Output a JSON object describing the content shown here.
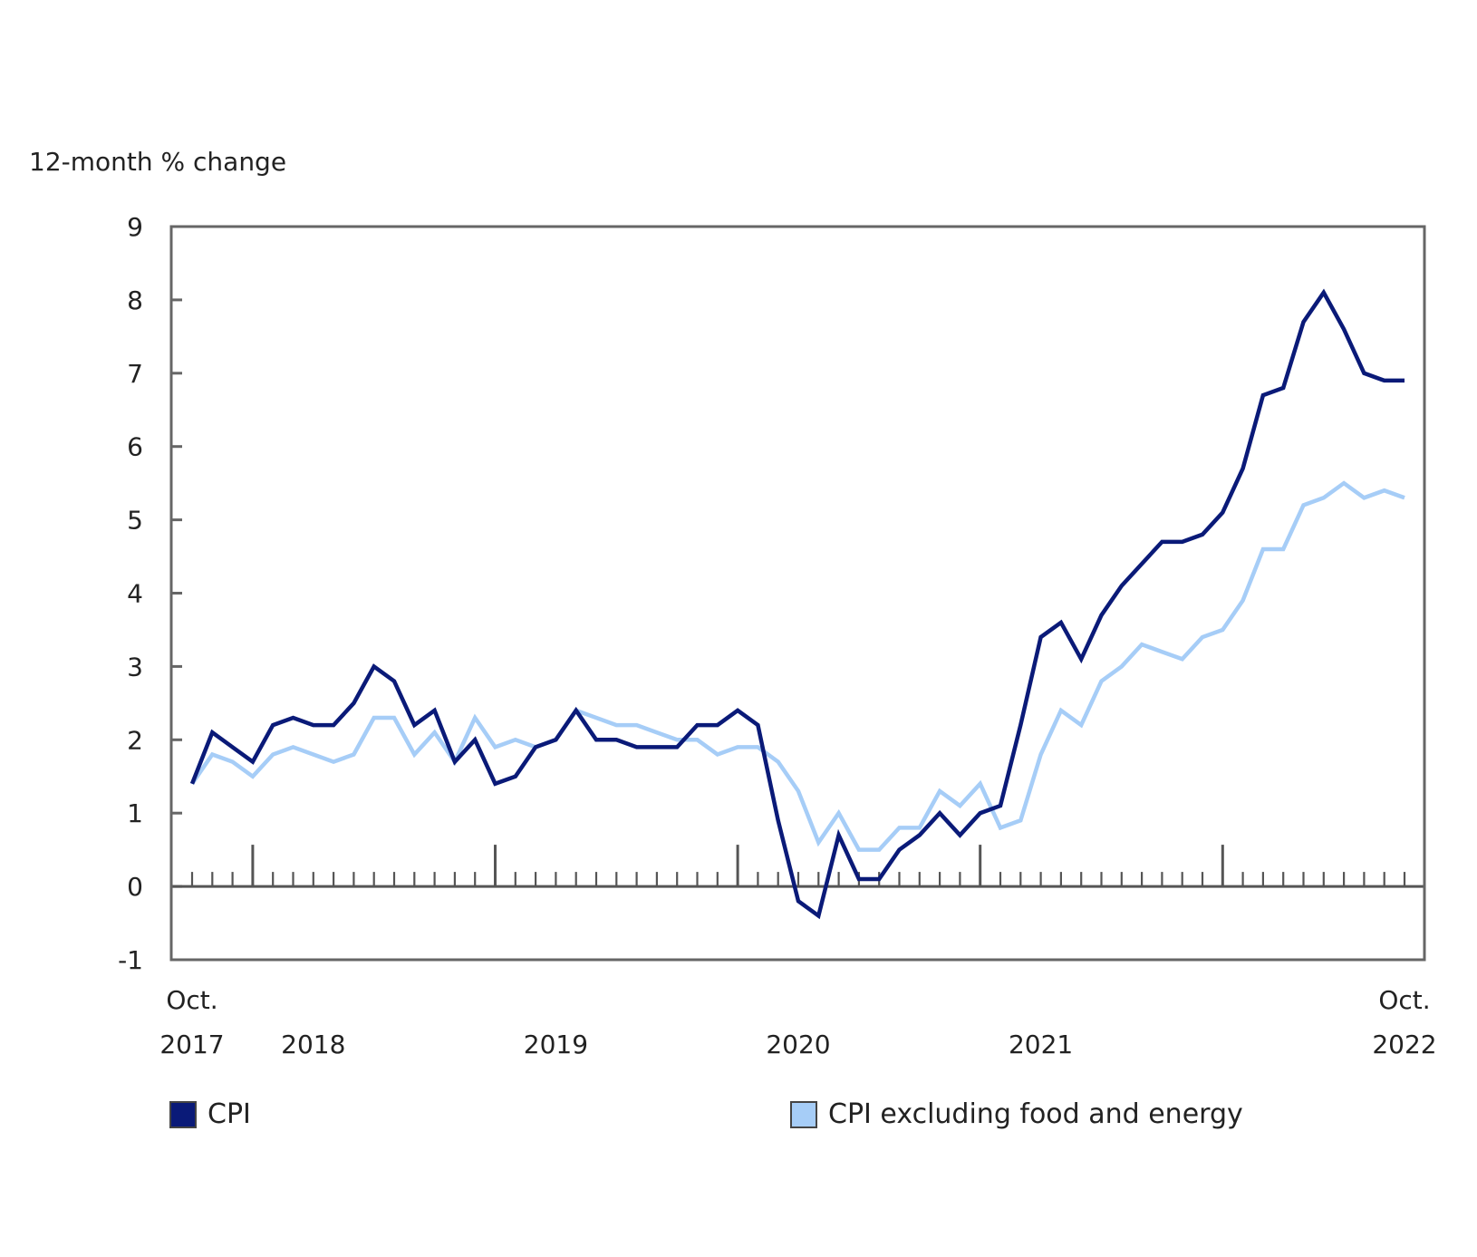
{
  "chart_data": {
    "type": "line",
    "y_axis_title": "12-month % change",
    "ylim": [
      -1,
      9
    ],
    "y_ticks": [
      9,
      8,
      7,
      6,
      5,
      4,
      3,
      2,
      1,
      0,
      -1
    ],
    "start_label": [
      "Oct.",
      "2017"
    ],
    "end_label": [
      "Oct.",
      "2022"
    ],
    "year_labels": [
      "2018",
      "2019",
      "2020",
      "2021"
    ],
    "months": [
      "2017-10",
      "2017-11",
      "2017-12",
      "2018-01",
      "2018-02",
      "2018-03",
      "2018-04",
      "2018-05",
      "2018-06",
      "2018-07",
      "2018-08",
      "2018-09",
      "2018-10",
      "2018-11",
      "2018-12",
      "2019-01",
      "2019-02",
      "2019-03",
      "2019-04",
      "2019-05",
      "2019-06",
      "2019-07",
      "2019-08",
      "2019-09",
      "2019-10",
      "2019-11",
      "2019-12",
      "2020-01",
      "2020-02",
      "2020-03",
      "2020-04",
      "2020-05",
      "2020-06",
      "2020-07",
      "2020-08",
      "2020-09",
      "2020-10",
      "2020-11",
      "2020-12",
      "2021-01",
      "2021-02",
      "2021-03",
      "2021-04",
      "2021-05",
      "2021-06",
      "2021-07",
      "2021-08",
      "2021-09",
      "2021-10",
      "2021-11",
      "2021-12",
      "2022-01",
      "2022-02",
      "2022-03",
      "2022-04",
      "2022-05",
      "2022-06",
      "2022-07",
      "2022-08",
      "2022-09",
      "2022-10"
    ],
    "grid": false,
    "legend_position": "bottom",
    "series": [
      {
        "name": "CPI",
        "color": "#0a1a78",
        "values": [
          1.4,
          2.1,
          1.9,
          1.7,
          2.2,
          2.3,
          2.2,
          2.2,
          2.5,
          3.0,
          2.8,
          2.2,
          2.4,
          1.7,
          2.0,
          1.4,
          1.5,
          1.9,
          2.0,
          2.4,
          2.0,
          2.0,
          1.9,
          1.9,
          1.9,
          2.2,
          2.2,
          2.4,
          2.2,
          0.9,
          -0.2,
          -0.4,
          0.7,
          0.1,
          0.1,
          0.5,
          0.7,
          1.0,
          0.7,
          1.0,
          1.1,
          2.2,
          3.4,
          3.6,
          3.1,
          3.7,
          4.1,
          4.4,
          4.7,
          4.7,
          4.8,
          5.1,
          5.7,
          6.7,
          6.8,
          7.7,
          8.1,
          7.6,
          7.0,
          6.9,
          6.9
        ]
      },
      {
        "name": "CPI excluding food and energy",
        "color": "#a6cdf7",
        "values": [
          1.4,
          1.8,
          1.7,
          1.5,
          1.8,
          1.9,
          1.8,
          1.7,
          1.8,
          2.3,
          2.3,
          1.8,
          2.1,
          1.7,
          2.3,
          1.9,
          2.0,
          1.9,
          2.0,
          2.4,
          2.3,
          2.2,
          2.2,
          2.1,
          2.0,
          2.0,
          1.8,
          1.9,
          1.9,
          1.7,
          1.3,
          0.6,
          1.0,
          0.5,
          0.5,
          0.8,
          0.8,
          1.3,
          1.1,
          1.4,
          0.8,
          0.9,
          1.8,
          2.4,
          2.2,
          2.8,
          3.0,
          3.3,
          3.2,
          3.1,
          3.4,
          3.5,
          3.9,
          4.6,
          4.6,
          5.2,
          5.3,
          5.5,
          5.3,
          5.4,
          5.3
        ]
      }
    ]
  }
}
